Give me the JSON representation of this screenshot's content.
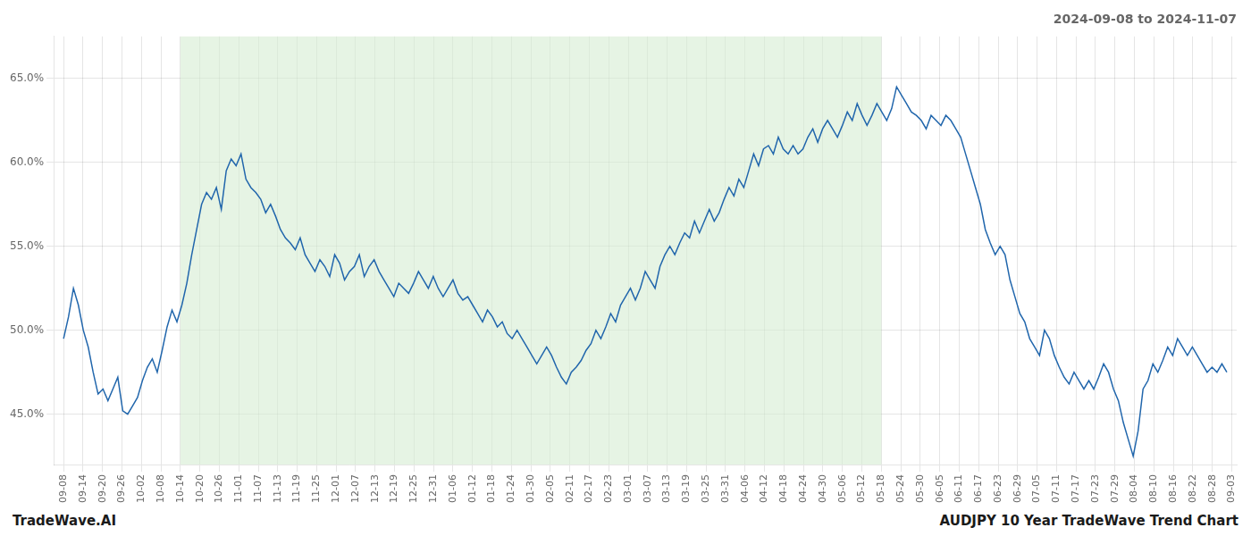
{
  "chart_data": {
    "type": "line",
    "title": "2024-09-08 to 2024-11-07",
    "annotations": [
      "TradeWave.AI",
      "AUDJPY 10 Year TradeWave Trend Chart"
    ],
    "color": "#2166ac",
    "grid": true,
    "shaded_span": {
      "from": 23.7,
      "to": 165.9,
      "color": "#d6ecd2"
    },
    "xlim": [
      -2,
      238
    ],
    "xticks": [
      {
        "value": 0,
        "label": "09-08"
      },
      {
        "value": 3.95,
        "label": "09-14"
      },
      {
        "value": 7.9,
        "label": "09-20"
      },
      {
        "value": 11.85,
        "label": "09-26"
      },
      {
        "value": 15.8,
        "label": "10-02"
      },
      {
        "value": 19.75,
        "label": "10-08"
      },
      {
        "value": 23.7,
        "label": "10-14"
      },
      {
        "value": 27.65,
        "label": "10-20"
      },
      {
        "value": 31.6,
        "label": "10-26"
      },
      {
        "value": 35.55,
        "label": "11-01"
      },
      {
        "value": 39.5,
        "label": "11-07"
      },
      {
        "value": 43.45,
        "label": "11-13"
      },
      {
        "value": 47.4,
        "label": "11-19"
      },
      {
        "value": 51.35,
        "label": "11-25"
      },
      {
        "value": 55.3,
        "label": "12-01"
      },
      {
        "value": 59.25,
        "label": "12-07"
      },
      {
        "value": 63.2,
        "label": "12-13"
      },
      {
        "value": 67.15,
        "label": "12-19"
      },
      {
        "value": 71.1,
        "label": "12-25"
      },
      {
        "value": 75.05,
        "label": "12-31"
      },
      {
        "value": 79,
        "label": "01-06"
      },
      {
        "value": 82.95,
        "label": "01-12"
      },
      {
        "value": 86.9,
        "label": "01-18"
      },
      {
        "value": 90.85,
        "label": "01-24"
      },
      {
        "value": 94.8,
        "label": "01-30"
      },
      {
        "value": 98.75,
        "label": "02-05"
      },
      {
        "value": 102.7,
        "label": "02-11"
      },
      {
        "value": 106.65,
        "label": "02-17"
      },
      {
        "value": 110.6,
        "label": "02-23"
      },
      {
        "value": 114.55,
        "label": "03-01"
      },
      {
        "value": 118.5,
        "label": "03-07"
      },
      {
        "value": 122.45,
        "label": "03-13"
      },
      {
        "value": 126.4,
        "label": "03-19"
      },
      {
        "value": 130.35,
        "label": "03-25"
      },
      {
        "value": 134.3,
        "label": "03-31"
      },
      {
        "value": 138.25,
        "label": "04-06"
      },
      {
        "value": 142.2,
        "label": "04-12"
      },
      {
        "value": 146.15,
        "label": "04-18"
      },
      {
        "value": 150.1,
        "label": "04-24"
      },
      {
        "value": 154.05,
        "label": "04-30"
      },
      {
        "value": 158,
        "label": "05-06"
      },
      {
        "value": 161.95,
        "label": "05-12"
      },
      {
        "value": 165.9,
        "label": "05-18"
      },
      {
        "value": 169.85,
        "label": "05-24"
      },
      {
        "value": 173.8,
        "label": "05-30"
      },
      {
        "value": 177.75,
        "label": "06-05"
      },
      {
        "value": 181.7,
        "label": "06-11"
      },
      {
        "value": 185.65,
        "label": "06-17"
      },
      {
        "value": 189.6,
        "label": "06-23"
      },
      {
        "value": 193.55,
        "label": "06-29"
      },
      {
        "value": 197.5,
        "label": "07-05"
      },
      {
        "value": 201.45,
        "label": "07-11"
      },
      {
        "value": 205.4,
        "label": "07-17"
      },
      {
        "value": 209.35,
        "label": "07-23"
      },
      {
        "value": 213.3,
        "label": "07-29"
      },
      {
        "value": 217.25,
        "label": "08-04"
      },
      {
        "value": 221.2,
        "label": "08-10"
      },
      {
        "value": 225.15,
        "label": "08-16"
      },
      {
        "value": 229.1,
        "label": "08-22"
      },
      {
        "value": 233.05,
        "label": "08-28"
      },
      {
        "value": 237,
        "label": "09-03"
      }
    ],
    "ylim": [
      42.0,
      67.5
    ],
    "yticks": [
      {
        "value": 45.0,
        "label": "45.0%"
      },
      {
        "value": 50.0,
        "label": "50.0%"
      },
      {
        "value": 55.0,
        "label": "55.0%"
      },
      {
        "value": 60.0,
        "label": "60.0%"
      },
      {
        "value": 65.0,
        "label": "65.0%"
      }
    ],
    "values": [
      49.5,
      50.8,
      52.5,
      51.5,
      50.0,
      49.0,
      47.5,
      46.2,
      46.5,
      45.8,
      46.5,
      47.2,
      45.2,
      45.0,
      45.5,
      46.0,
      47.0,
      47.8,
      48.3,
      47.5,
      48.8,
      50.2,
      51.2,
      50.5,
      51.5,
      52.8,
      54.5,
      56.0,
      57.5,
      58.2,
      57.8,
      58.5,
      57.2,
      59.5,
      60.2,
      59.8,
      60.5,
      59.0,
      58.5,
      58.2,
      57.8,
      57.0,
      57.5,
      56.8,
      56.0,
      55.5,
      55.2,
      54.8,
      55.5,
      54.5,
      54.0,
      53.5,
      54.2,
      53.8,
      53.2,
      54.5,
      54.0,
      53.0,
      53.5,
      53.8,
      54.5,
      53.2,
      53.8,
      54.2,
      53.5,
      53.0,
      52.5,
      52.0,
      52.8,
      52.5,
      52.2,
      52.8,
      53.5,
      53.0,
      52.5,
      53.2,
      52.5,
      52.0,
      52.5,
      53.0,
      52.2,
      51.8,
      52.0,
      51.5,
      51.0,
      50.5,
      51.2,
      50.8,
      50.2,
      50.5,
      49.8,
      49.5,
      50.0,
      49.5,
      49.0,
      48.5,
      48.0,
      48.5,
      49.0,
      48.5,
      47.8,
      47.2,
      46.8,
      47.5,
      47.8,
      48.2,
      48.8,
      49.2,
      50.0,
      49.5,
      50.2,
      51.0,
      50.5,
      51.5,
      52.0,
      52.5,
      51.8,
      52.5,
      53.5,
      53.0,
      52.5,
      53.8,
      54.5,
      55.0,
      54.5,
      55.2,
      55.8,
      55.5,
      56.5,
      55.8,
      56.5,
      57.2,
      56.5,
      57.0,
      57.8,
      58.5,
      58.0,
      59.0,
      58.5,
      59.5,
      60.5,
      59.8,
      60.8,
      61.0,
      60.5,
      61.5,
      60.8,
      60.5,
      61.0,
      60.5,
      60.8,
      61.5,
      62.0,
      61.2,
      62.0,
      62.5,
      62.0,
      61.5,
      62.2,
      63.0,
      62.5,
      63.5,
      62.8,
      62.2,
      62.8,
      63.5,
      63.0,
      62.5,
      63.2,
      64.5,
      64.0,
      63.5,
      63.0,
      62.8,
      62.5,
      62.0,
      62.8,
      62.5,
      62.2,
      62.8,
      62.5,
      62.0,
      61.5,
      60.5,
      59.5,
      58.5,
      57.5,
      56.0,
      55.2,
      54.5,
      55.0,
      54.5,
      53.0,
      52.0,
      51.0,
      50.5,
      49.5,
      49.0,
      48.5,
      50.0,
      49.5,
      48.5,
      47.8,
      47.2,
      46.8,
      47.5,
      47.0,
      46.5,
      47.0,
      46.5,
      47.2,
      48.0,
      47.5,
      46.5,
      45.8,
      44.5,
      43.5,
      42.5,
      44.0,
      46.5,
      47.0,
      48.0,
      47.5,
      48.2,
      49.0,
      48.5,
      49.5,
      49.0,
      48.5,
      49.0,
      48.5,
      48.0,
      47.5,
      47.8,
      47.5,
      48.0,
      47.5
    ]
  }
}
